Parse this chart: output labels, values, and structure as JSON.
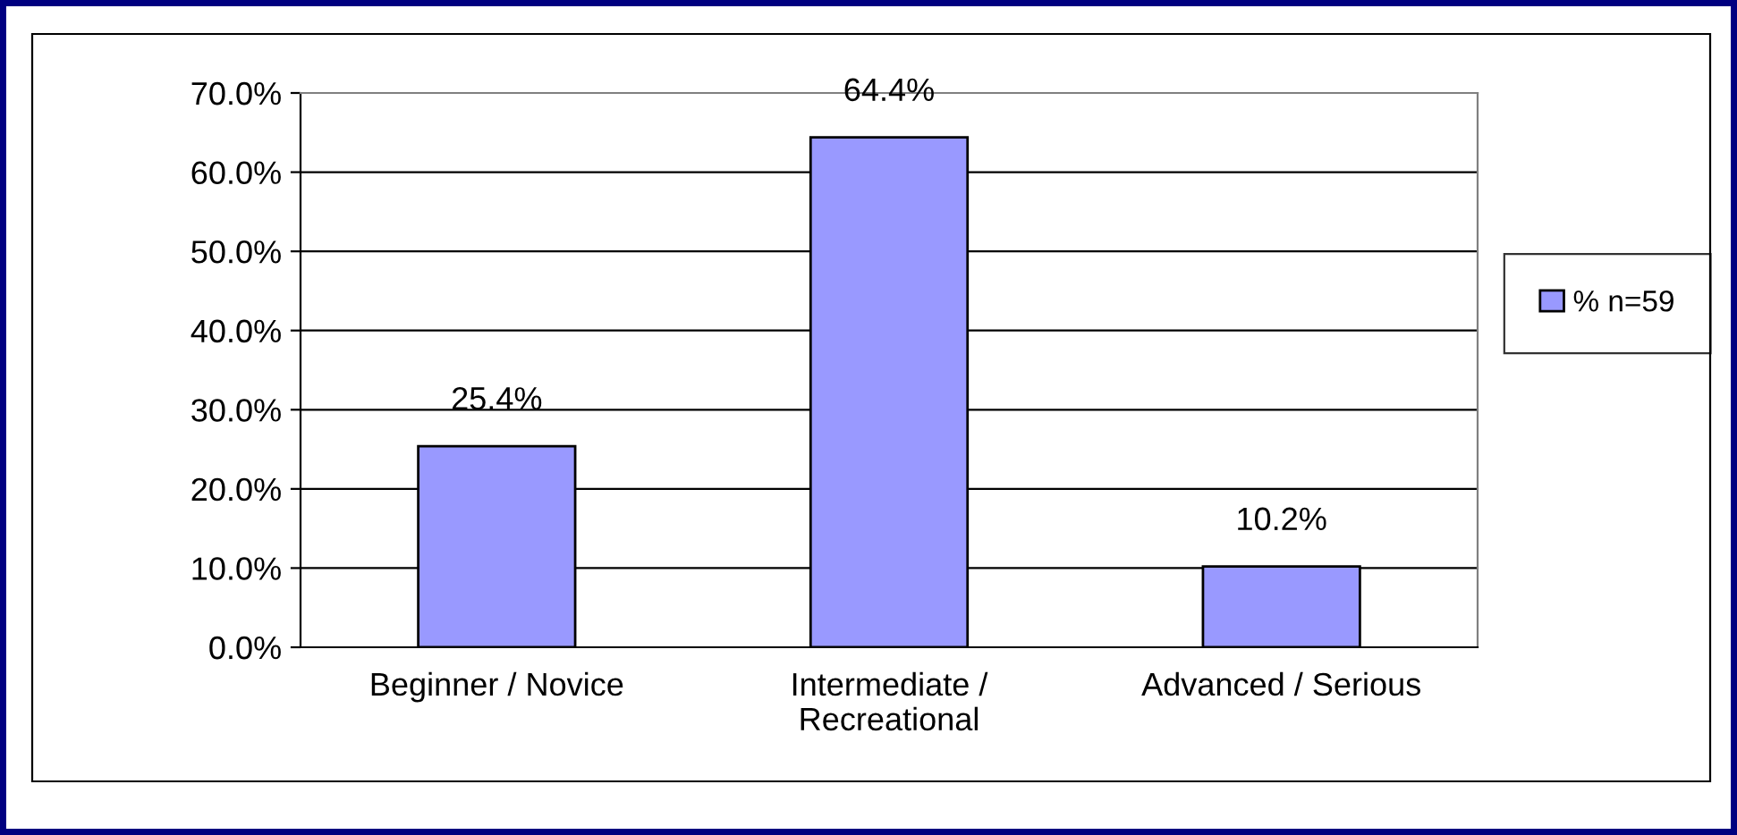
{
  "chart_data": {
    "type": "bar",
    "categories": [
      "Beginner / Novice",
      "Intermediate / Recreational",
      "Advanced / Serious"
    ],
    "series": [
      {
        "name": "% n=59",
        "color": "#9999ff",
        "values": [
          25.4,
          64.4,
          10.2
        ],
        "value_labels": [
          "25.4%",
          "64.4%",
          "10.2%"
        ]
      }
    ],
    "ylim": [
      0,
      70
    ],
    "yticks": [
      {
        "value": 0,
        "label": "0.0%"
      },
      {
        "value": 10,
        "label": "10.0%"
      },
      {
        "value": 20,
        "label": "20.0%"
      },
      {
        "value": 30,
        "label": "30.0%"
      },
      {
        "value": 40,
        "label": "40.0%"
      },
      {
        "value": 50,
        "label": "50.0%"
      },
      {
        "value": 60,
        "label": "60.0%"
      },
      {
        "value": 70,
        "label": "70.0%"
      }
    ],
    "grid": "y",
    "legend": "right"
  }
}
